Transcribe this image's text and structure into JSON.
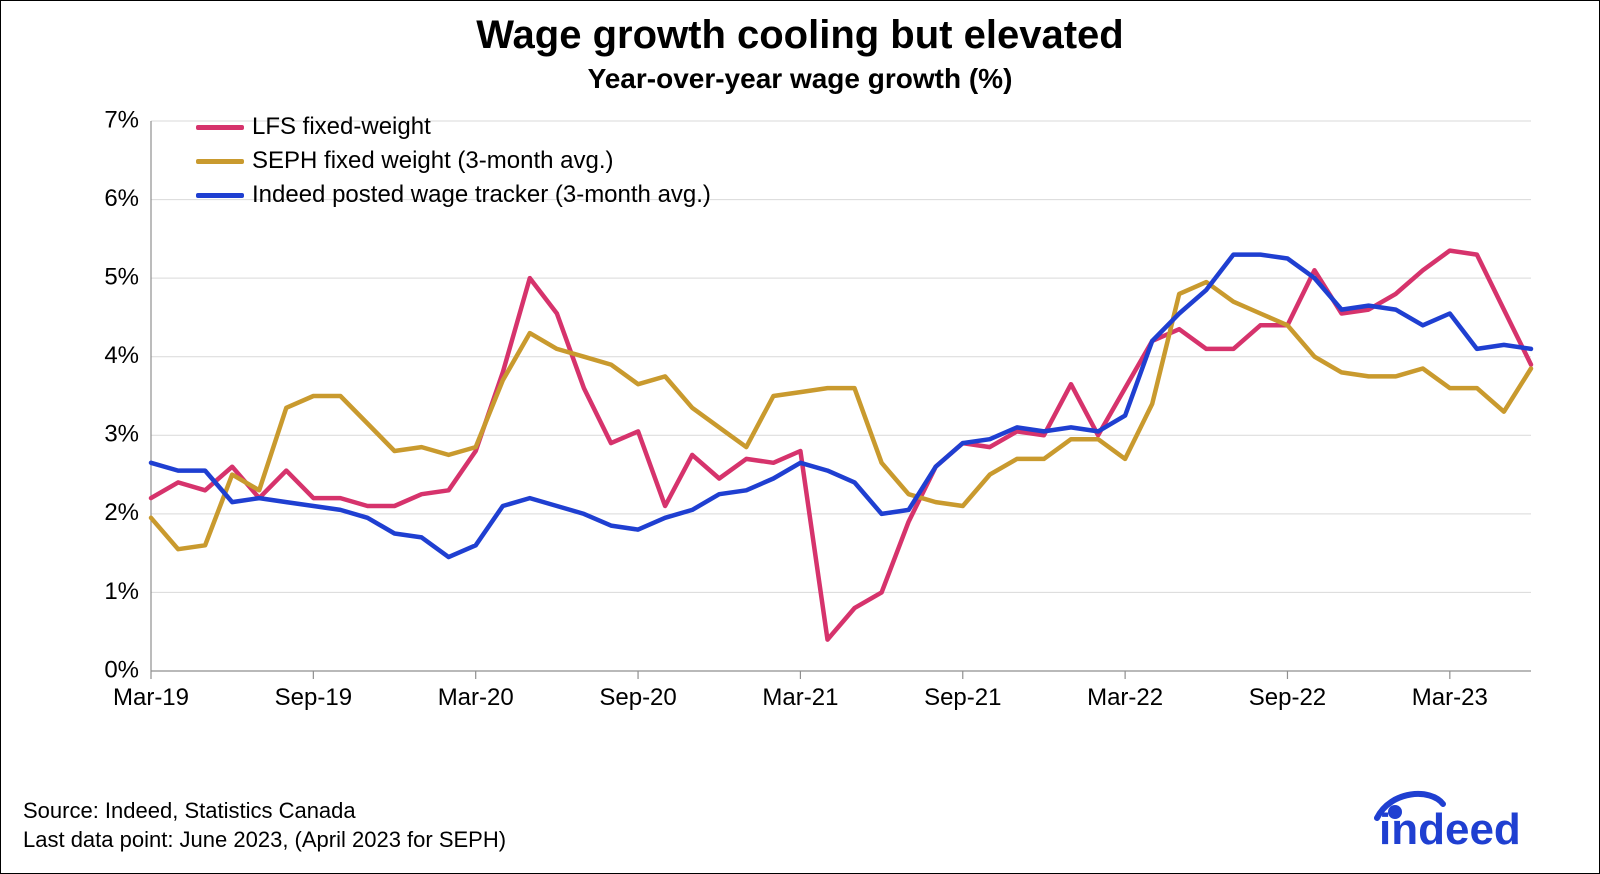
{
  "chart": {
    "type": "line",
    "title": "Wage growth cooling but elevated",
    "subtitle": "Year-over-year wage growth (%)",
    "title_fontsize": 40,
    "subtitle_fontsize": 28,
    "title_color": "#000000",
    "subtitle_color": "#000000",
    "background_color": "#ffffff",
    "axis_line_color": "#8f8f8f",
    "grid_color": "#d9d9d9",
    "line_width": 4.5,
    "y_axis": {
      "min": 0,
      "max": 7,
      "ticks": [
        0,
        1,
        2,
        3,
        4,
        5,
        6,
        7
      ],
      "tick_labels": [
        "0%",
        "1%",
        "2%",
        "3%",
        "4%",
        "5%",
        "6%",
        "7%"
      ],
      "tick_fontsize": 24,
      "tick_color": "#000000"
    },
    "x_axis": {
      "categories": [
        "Mar-19",
        "Apr-19",
        "May-19",
        "Jun-19",
        "Jul-19",
        "Aug-19",
        "Sep-19",
        "Oct-19",
        "Nov-19",
        "Dec-19",
        "Jan-20",
        "Feb-20",
        "Mar-20",
        "Apr-20",
        "May-20",
        "Jun-20",
        "Jul-20",
        "Aug-20",
        "Sep-20",
        "Oct-20",
        "Nov-20",
        "Dec-20",
        "Jan-21",
        "Feb-21",
        "Mar-21",
        "Apr-21",
        "May-21",
        "Jun-21",
        "Jul-21",
        "Aug-21",
        "Sep-21",
        "Oct-21",
        "Nov-21",
        "Dec-21",
        "Jan-22",
        "Feb-22",
        "Mar-22",
        "Apr-22",
        "May-22",
        "Jun-22",
        "Jul-22",
        "Aug-22",
        "Sep-22",
        "Oct-22",
        "Nov-22",
        "Dec-22",
        "Jan-23",
        "Feb-23",
        "Mar-23",
        "Apr-23",
        "May-23",
        "Jun-23"
      ],
      "tick_indices": [
        0,
        6,
        12,
        18,
        24,
        30,
        36,
        42,
        48
      ],
      "tick_labels": [
        "Mar-19",
        "Sep-19",
        "Mar-20",
        "Sep-20",
        "Mar-21",
        "Sep-21",
        "Mar-22",
        "Sep-22",
        "Mar-23"
      ],
      "tick_fontsize": 24,
      "tick_color": "#000000"
    },
    "series": [
      {
        "name": "LFS fixed-weight",
        "color": "#d6336c",
        "values": [
          2.2,
          2.4,
          2.3,
          2.6,
          2.2,
          2.55,
          2.2,
          2.2,
          2.1,
          2.1,
          2.25,
          2.3,
          2.8,
          3.8,
          5.0,
          4.55,
          3.6,
          2.9,
          3.05,
          2.1,
          2.75,
          2.45,
          2.7,
          2.65,
          2.8,
          0.4,
          0.8,
          1.0,
          1.9,
          2.6,
          2.9,
          2.85,
          3.05,
          3.0,
          3.65,
          3.0,
          3.6,
          4.2,
          4.35,
          4.1,
          4.1,
          4.4,
          4.4,
          5.1,
          4.55,
          4.6,
          4.8,
          5.1,
          5.35,
          5.3,
          4.6,
          3.9
        ]
      },
      {
        "name": "SEPH fixed weight (3-month avg.)",
        "color": "#c99a2e",
        "values": [
          1.95,
          1.55,
          1.6,
          2.5,
          2.3,
          3.35,
          3.5,
          3.5,
          3.15,
          2.8,
          2.85,
          2.75,
          2.85,
          3.7,
          4.3,
          4.1,
          4.0,
          3.9,
          3.65,
          3.75,
          3.35,
          3.1,
          2.85,
          3.5,
          3.55,
          3.6,
          3.6,
          2.65,
          2.25,
          2.15,
          2.1,
          2.5,
          2.7,
          2.7,
          2.95,
          2.95,
          2.7,
          3.4,
          4.8,
          4.95,
          4.7,
          4.55,
          4.4,
          4.0,
          3.8,
          3.75,
          3.75,
          3.85,
          3.6,
          3.6,
          3.3,
          3.85
        ]
      },
      {
        "name": "Indeed posted wage tracker (3-month avg.)",
        "color": "#1f3fd1",
        "values": [
          2.65,
          2.55,
          2.55,
          2.15,
          2.2,
          2.15,
          2.1,
          2.05,
          1.95,
          1.75,
          1.7,
          1.45,
          1.6,
          2.1,
          2.2,
          2.1,
          2.0,
          1.85,
          1.8,
          1.95,
          2.05,
          2.25,
          2.3,
          2.45,
          2.65,
          2.55,
          2.4,
          2.0,
          2.05,
          2.6,
          2.9,
          2.95,
          3.1,
          3.05,
          3.1,
          3.05,
          3.25,
          4.2,
          4.55,
          4.85,
          5.3,
          5.3,
          5.25,
          5.0,
          4.6,
          4.65,
          4.6,
          4.4,
          4.55,
          4.1,
          4.15,
          4.1
        ]
      }
    ],
    "legend": {
      "position": "top-left-inside",
      "fontsize": 24,
      "items": [
        {
          "label": "LFS fixed-weight",
          "color": "#d6336c"
        },
        {
          "label": "SEPH fixed weight (3-month avg.)",
          "color": "#c99a2e"
        },
        {
          "label": "Indeed posted wage tracker (3-month avg.)",
          "color": "#1f3fd1"
        }
      ]
    }
  },
  "footer": {
    "source_line": "Source: Indeed, Statistics Canada",
    "note_line": "Last data point: June 2023, (April 2023 for SEPH)",
    "fontsize": 22,
    "color": "#000000"
  },
  "logo": {
    "text": "indeed",
    "color": "#1f3fd1",
    "fontsize": 44,
    "arc_color": "#1f3fd1"
  }
}
